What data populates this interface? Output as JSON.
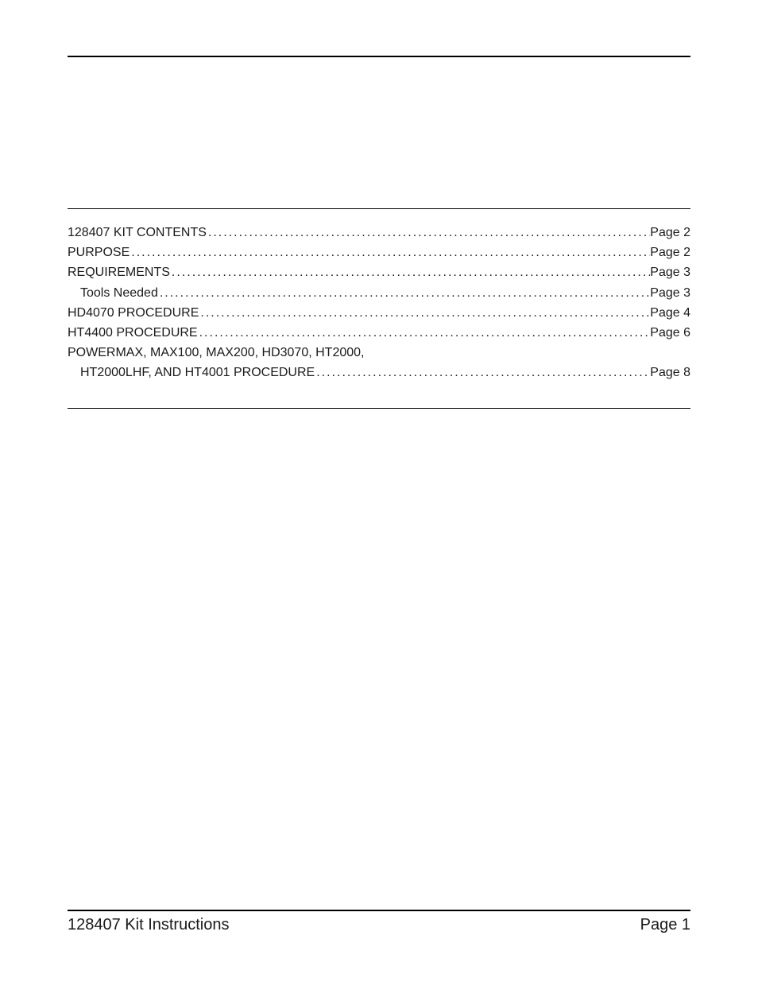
{
  "colors": {
    "text": "#1a1a1a",
    "rule": "#000000",
    "background": "#ffffff"
  },
  "typography": {
    "body_font": "Arial, Helvetica, sans-serif",
    "toc_fontsize_pt": 12,
    "footer_fontsize_pt": 15
  },
  "toc": {
    "entries": [
      {
        "label": "128407 KIT CONTENTS",
        "page": "Page 2",
        "indent": 0
      },
      {
        "label": "PURPOSE",
        "page": "Page 2",
        "indent": 0
      },
      {
        "label": "REQUIREMENTS",
        "page": "Page 3",
        "indent": 0
      },
      {
        "label": "Tools Needed",
        "page": "Page 3",
        "indent": 1
      },
      {
        "label": "HD4070 PROCEDURE",
        "page": "Page 4",
        "indent": 0
      },
      {
        "label": "HT4400 PROCEDURE",
        "page": "Page 6",
        "indent": 0
      }
    ],
    "multiline_entry": {
      "line1": "POWERMAX, MAX100, MAX200, HD3070, HT2000,",
      "line2": "HT2000LHF, AND HT4001 PROCEDURE",
      "page": "Page 8"
    }
  },
  "footer": {
    "left": "128407 Kit Instructions",
    "right": "Page 1"
  }
}
